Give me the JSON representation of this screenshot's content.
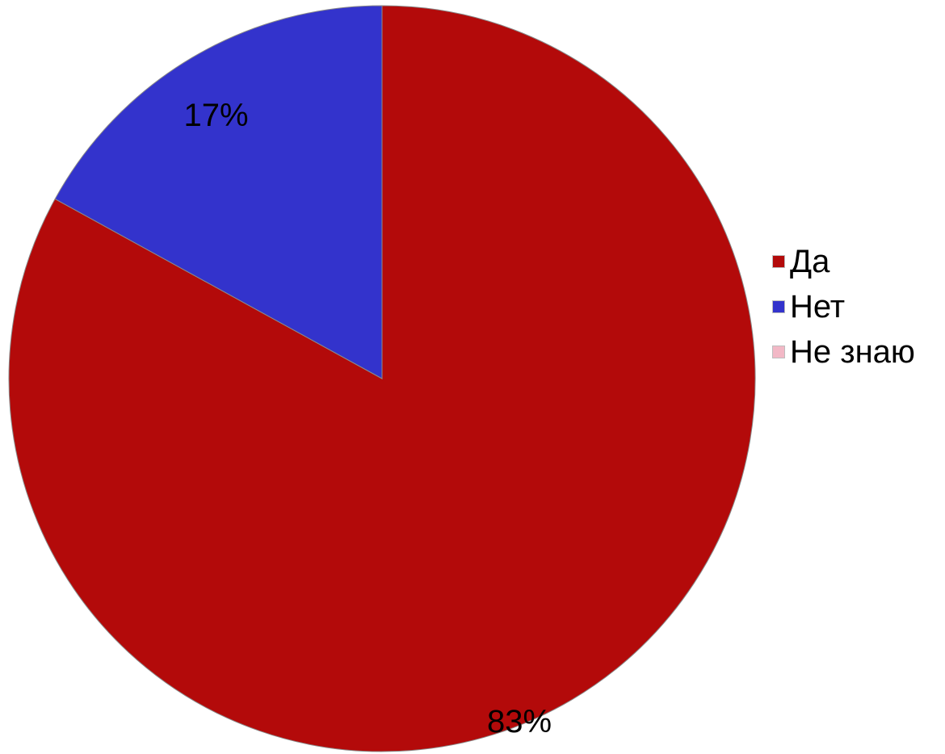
{
  "chart_data": {
    "type": "pie",
    "title": "",
    "categories": [
      "Да",
      "Нет",
      "Не знаю"
    ],
    "values": [
      83,
      17,
      0
    ],
    "data_labels": [
      "83%",
      "17%",
      ""
    ],
    "colors": [
      "#b30a0a",
      "#3333cc",
      "#f2b8c6"
    ],
    "start": "12 o'clock",
    "direction": "clockwise",
    "legend_position": "right"
  }
}
